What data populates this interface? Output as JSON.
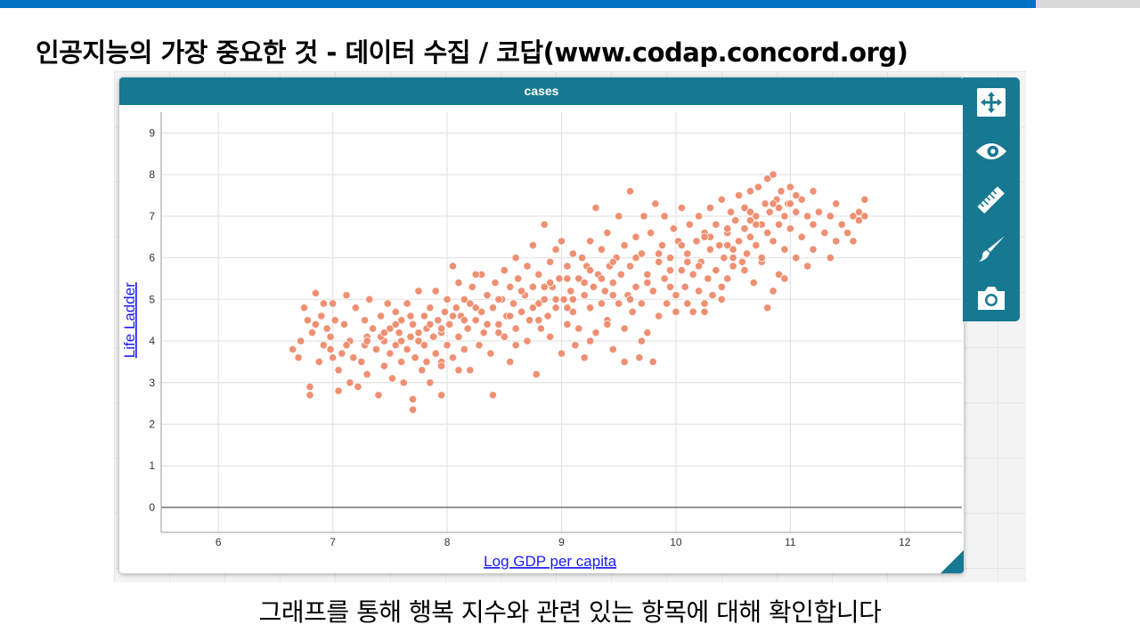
{
  "slide": {
    "title": "인공지능의 가장 중요한 것 - 데이터 수집 / 코답(www.codap.concord.org)",
    "caption": "그래프를 통해 행복 지수와 관련 있는 항목에 대해 확인합니다"
  },
  "graph": {
    "tile_title": "cases",
    "accent": "#177991",
    "point_color": "#ee8a6b"
  },
  "toolbar": {
    "items": [
      {
        "name": "rescale-icon"
      },
      {
        "name": "hide-show-icon"
      },
      {
        "name": "measure-ruler-icon"
      },
      {
        "name": "brush-style-icon"
      },
      {
        "name": "camera-icon"
      }
    ]
  },
  "chart_data": {
    "type": "scatter",
    "title": "",
    "xlabel": "Log GDP per capita",
    "ylabel": "Life Ladder",
    "xlim": [
      5.5,
      12.5
    ],
    "ylim": [
      -0.6,
      9.5
    ],
    "x_ticks": [
      6,
      7,
      8,
      9,
      10,
      11,
      12
    ],
    "y_ticks": [
      0,
      1,
      2,
      3,
      4,
      5,
      6,
      7,
      8,
      9
    ],
    "grid": true,
    "points": [
      [
        6.65,
        3.8
      ],
      [
        6.7,
        3.6
      ],
      [
        6.72,
        4.0
      ],
      [
        6.75,
        4.8
      ],
      [
        6.78,
        4.5
      ],
      [
        6.8,
        2.9
      ],
      [
        6.8,
        2.7
      ],
      [
        6.82,
        4.2
      ],
      [
        6.85,
        5.15
      ],
      [
        6.88,
        3.5
      ],
      [
        6.9,
        4.6
      ],
      [
        6.92,
        3.9
      ],
      [
        6.95,
        4.3
      ],
      [
        6.98,
        4.1
      ],
      [
        7.0,
        3.6
      ],
      [
        7.0,
        4.9
      ],
      [
        7.02,
        4.5
      ],
      [
        7.05,
        3.3
      ],
      [
        7.05,
        2.8
      ],
      [
        7.08,
        3.7
      ],
      [
        7.1,
        4.4
      ],
      [
        7.12,
        5.1
      ],
      [
        7.15,
        4.0
      ],
      [
        7.15,
        3.0
      ],
      [
        7.18,
        3.6
      ],
      [
        7.2,
        4.8
      ],
      [
        7.22,
        2.9
      ],
      [
        7.25,
        3.5
      ],
      [
        7.28,
        4.5
      ],
      [
        7.3,
        4.1
      ],
      [
        7.3,
        3.2
      ],
      [
        7.32,
        5.0
      ],
      [
        7.35,
        4.3
      ],
      [
        7.38,
        3.8
      ],
      [
        7.4,
        2.7
      ],
      [
        7.42,
        4.6
      ],
      [
        7.45,
        3.4
      ],
      [
        7.45,
        4.0
      ],
      [
        7.48,
        4.9
      ],
      [
        7.5,
        3.7
      ],
      [
        7.5,
        4.3
      ],
      [
        7.52,
        3.1
      ],
      [
        7.55,
        4.7
      ],
      [
        7.55,
        3.9
      ],
      [
        7.58,
        4.2
      ],
      [
        7.6,
        3.5
      ],
      [
        7.6,
        4.5
      ],
      [
        7.62,
        3.0
      ],
      [
        7.65,
        4.9
      ],
      [
        7.65,
        3.8
      ],
      [
        7.68,
        4.1
      ],
      [
        7.7,
        2.6
      ],
      [
        7.7,
        2.35
      ],
      [
        7.7,
        4.4
      ],
      [
        7.72,
        3.6
      ],
      [
        7.75,
        5.2
      ],
      [
        7.75,
        4.0
      ],
      [
        7.78,
        3.3
      ],
      [
        7.8,
        4.6
      ],
      [
        7.8,
        3.9
      ],
      [
        7.82,
        4.3
      ],
      [
        7.85,
        3.0
      ],
      [
        7.85,
        4.8
      ],
      [
        7.88,
        4.1
      ],
      [
        7.9,
        3.7
      ],
      [
        7.9,
        5.2
      ],
      [
        7.92,
        4.5
      ],
      [
        7.95,
        3.5
      ],
      [
        7.95,
        4.2
      ],
      [
        7.98,
        4.7
      ],
      [
        7.95,
        2.7
      ],
      [
        8.0,
        3.9
      ],
      [
        8.0,
        5.0
      ],
      [
        8.02,
        4.4
      ],
      [
        8.05,
        5.8
      ],
      [
        8.05,
        3.6
      ],
      [
        8.08,
        4.8
      ],
      [
        8.1,
        4.1
      ],
      [
        8.1,
        5.4
      ],
      [
        8.12,
        4.6
      ],
      [
        8.15,
        3.8
      ],
      [
        8.15,
        5.0
      ],
      [
        8.18,
        4.3
      ],
      [
        8.2,
        3.3
      ],
      [
        8.2,
        4.9
      ],
      [
        8.22,
        5.3
      ],
      [
        8.25,
        4.5
      ],
      [
        8.28,
        3.9
      ],
      [
        8.3,
        4.7
      ],
      [
        8.3,
        5.6
      ],
      [
        8.32,
        4.2
      ],
      [
        8.35,
        5.1
      ],
      [
        8.38,
        3.7
      ],
      [
        8.4,
        4.8
      ],
      [
        8.4,
        2.7
      ],
      [
        8.42,
        5.4
      ],
      [
        8.45,
        4.4
      ],
      [
        8.48,
        5.0
      ],
      [
        8.5,
        4.1
      ],
      [
        8.5,
        5.7
      ],
      [
        8.52,
        4.6
      ],
      [
        8.55,
        5.3
      ],
      [
        8.55,
        3.5
      ],
      [
        8.58,
        4.9
      ],
      [
        8.6,
        4.3
      ],
      [
        8.6,
        6.0
      ],
      [
        8.62,
        5.5
      ],
      [
        8.65,
        4.7
      ],
      [
        8.68,
        5.1
      ],
      [
        8.7,
        4.0
      ],
      [
        8.7,
        5.8
      ],
      [
        8.72,
        4.5
      ],
      [
        8.75,
        6.3
      ],
      [
        8.75,
        5.3
      ],
      [
        8.78,
        3.2
      ],
      [
        8.8,
        4.9
      ],
      [
        8.8,
        5.6
      ],
      [
        8.82,
        4.3
      ],
      [
        8.85,
        6.8
      ],
      [
        8.85,
        5.0
      ],
      [
        8.88,
        4.6
      ],
      [
        8.9,
        5.9
      ],
      [
        8.9,
        4.1
      ],
      [
        8.92,
        5.3
      ],
      [
        8.95,
        6.2
      ],
      [
        8.95,
        4.8
      ],
      [
        8.98,
        5.5
      ],
      [
        9.0,
        3.7
      ],
      [
        9.0,
        6.4
      ],
      [
        9.02,
        5.0
      ],
      [
        9.05,
        4.4
      ],
      [
        9.05,
        5.8
      ],
      [
        9.08,
        5.2
      ],
      [
        9.1,
        4.7
      ],
      [
        9.1,
        6.1
      ],
      [
        9.12,
        3.9
      ],
      [
        9.15,
        5.5
      ],
      [
        9.15,
        4.3
      ],
      [
        9.18,
        6.0
      ],
      [
        9.2,
        5.1
      ],
      [
        9.2,
        3.6
      ],
      [
        9.22,
        5.8
      ],
      [
        9.25,
        4.8
      ],
      [
        9.25,
        6.4
      ],
      [
        9.28,
        5.3
      ],
      [
        9.3,
        4.2
      ],
      [
        9.3,
        7.2
      ],
      [
        9.32,
        5.6
      ],
      [
        9.35,
        4.9
      ],
      [
        9.35,
        6.2
      ],
      [
        9.38,
        5.2
      ],
      [
        9.4,
        4.5
      ],
      [
        9.4,
        6.6
      ],
      [
        9.42,
        5.8
      ],
      [
        9.45,
        3.8
      ],
      [
        9.45,
        5.4
      ],
      [
        9.48,
        6.0
      ],
      [
        9.5,
        4.9
      ],
      [
        9.5,
        7.0
      ],
      [
        9.52,
        5.6
      ],
      [
        9.55,
        4.3
      ],
      [
        9.55,
        6.3
      ],
      [
        9.58,
        5.1
      ],
      [
        9.6,
        7.6
      ],
      [
        9.6,
        5.8
      ],
      [
        9.62,
        4.7
      ],
      [
        9.65,
        6.5
      ],
      [
        9.65,
        5.3
      ],
      [
        9.68,
        3.6
      ],
      [
        9.7,
        6.1
      ],
      [
        9.7,
        4.9
      ],
      [
        9.72,
        7.0
      ],
      [
        9.75,
        5.6
      ],
      [
        9.75,
        4.2
      ],
      [
        9.78,
        6.6
      ],
      [
        9.8,
        5.2
      ],
      [
        9.8,
        3.5
      ],
      [
        9.82,
        7.3
      ],
      [
        9.85,
        5.9
      ],
      [
        9.85,
        4.6
      ],
      [
        9.88,
        6.3
      ],
      [
        9.9,
        5.5
      ],
      [
        9.9,
        7.0
      ],
      [
        9.92,
        4.9
      ],
      [
        9.95,
        6.0
      ],
      [
        9.95,
        5.3
      ],
      [
        9.98,
        6.7
      ],
      [
        10.0,
        5.1
      ],
      [
        10.0,
        4.7
      ],
      [
        10.02,
        6.4
      ],
      [
        10.05,
        5.7
      ],
      [
        10.05,
        7.2
      ],
      [
        10.08,
        5.3
      ],
      [
        10.1,
        6.1
      ],
      [
        10.1,
        4.9
      ],
      [
        10.12,
        6.8
      ],
      [
        10.15,
        5.6
      ],
      [
        10.15,
        4.7
      ],
      [
        10.18,
        6.4
      ],
      [
        10.2,
        5.2
      ],
      [
        10.2,
        7.0
      ],
      [
        10.22,
        5.9
      ],
      [
        10.25,
        4.9
      ],
      [
        10.25,
        6.6
      ],
      [
        10.28,
        5.5
      ],
      [
        10.3,
        6.2
      ],
      [
        10.3,
        7.2
      ],
      [
        10.32,
        5.1
      ],
      [
        10.35,
        6.8
      ],
      [
        10.35,
        5.7
      ],
      [
        10.38,
        6.3
      ],
      [
        10.4,
        5.3
      ],
      [
        10.4,
        7.4
      ],
      [
        10.42,
        6.0
      ],
      [
        10.45,
        6.6
      ],
      [
        10.45,
        5.5
      ],
      [
        10.48,
        7.1
      ],
      [
        10.5,
        6.2
      ],
      [
        10.5,
        5.8
      ],
      [
        10.52,
        6.9
      ],
      [
        10.55,
        6.4
      ],
      [
        10.55,
        7.5
      ],
      [
        10.58,
        5.9
      ],
      [
        10.6,
        6.7
      ],
      [
        10.6,
        7.2
      ],
      [
        10.62,
        6.1
      ],
      [
        10.65,
        7.6
      ],
      [
        10.65,
        6.5
      ],
      [
        10.68,
        5.4
      ],
      [
        10.7,
        7.0
      ],
      [
        10.7,
        6.3
      ],
      [
        10.72,
        7.7
      ],
      [
        10.75,
        6.8
      ],
      [
        10.75,
        5.9
      ],
      [
        10.78,
        7.3
      ],
      [
        10.8,
        6.6
      ],
      [
        10.8,
        7.9
      ],
      [
        10.82,
        7.1
      ],
      [
        10.85,
        6.4
      ],
      [
        10.85,
        8.0
      ],
      [
        10.88,
        7.4
      ],
      [
        10.9,
        6.8
      ],
      [
        10.9,
        5.6
      ],
      [
        10.92,
        7.6
      ],
      [
        10.95,
        7.0
      ],
      [
        10.95,
        6.2
      ],
      [
        10.98,
        7.3
      ],
      [
        11.0,
        6.7
      ],
      [
        11.0,
        7.7
      ],
      [
        11.05,
        7.1
      ],
      [
        11.05,
        6.0
      ],
      [
        11.1,
        7.4
      ],
      [
        11.1,
        6.5
      ],
      [
        11.15,
        7.0
      ],
      [
        11.2,
        6.8
      ],
      [
        11.2,
        6.2
      ],
      [
        11.25,
        7.1
      ],
      [
        11.3,
        6.6
      ],
      [
        11.35,
        7.0
      ],
      [
        11.4,
        6.4
      ],
      [
        11.4,
        7.3
      ],
      [
        11.45,
        6.8
      ],
      [
        11.5,
        6.6
      ],
      [
        11.55,
        7.0
      ],
      [
        11.55,
        6.4
      ],
      [
        11.6,
        7.1
      ],
      [
        11.6,
        6.9
      ],
      [
        11.65,
        7.4
      ],
      [
        11.65,
        7.0
      ],
      [
        11.35,
        6.0
      ],
      [
        10.8,
        4.8
      ],
      [
        10.85,
        5.2
      ],
      [
        10.95,
        5.5
      ],
      [
        11.15,
        5.8
      ],
      [
        10.75,
        6.0
      ],
      [
        10.6,
        5.7
      ],
      [
        10.4,
        5.0
      ],
      [
        10.25,
        4.7
      ],
      [
        9.7,
        4.0
      ],
      [
        9.55,
        3.5
      ],
      [
        9.4,
        4.4
      ],
      [
        9.25,
        4.0
      ],
      [
        9.05,
        4.8
      ],
      [
        8.9,
        5.4
      ],
      [
        8.8,
        4.5
      ],
      [
        8.6,
        3.9
      ],
      [
        8.45,
        4.2
      ],
      [
        8.25,
        5.6
      ],
      [
        8.1,
        3.3
      ],
      [
        7.95,
        3.4
      ],
      [
        7.82,
        3.5
      ],
      [
        7.68,
        4.6
      ],
      [
        7.55,
        4.4
      ],
      [
        7.42,
        4.1
      ],
      [
        7.28,
        3.9
      ],
      [
        7.12,
        3.9
      ],
      [
        6.98,
        3.8
      ],
      [
        6.92,
        4.9
      ],
      [
        6.85,
        4.4
      ],
      [
        10.1,
        5.9
      ],
      [
        10.3,
        6.5
      ],
      [
        10.5,
        6.0
      ],
      [
        10.7,
        6.8
      ],
      [
        10.9,
        7.2
      ],
      [
        11.0,
        7.3
      ],
      [
        10.65,
        6.9
      ],
      [
        10.45,
        6.3
      ],
      [
        10.2,
        5.8
      ],
      [
        9.95,
        5.7
      ],
      [
        9.75,
        5.4
      ],
      [
        9.6,
        5.0
      ],
      [
        9.45,
        5.1
      ],
      [
        9.35,
        5.5
      ],
      [
        9.2,
        5.4
      ],
      [
        9.1,
        5.0
      ],
      [
        8.95,
        5.0
      ],
      [
        8.75,
        4.8
      ],
      [
        8.55,
        4.6
      ],
      [
        8.35,
        4.4
      ],
      [
        8.15,
        4.5
      ],
      [
        7.95,
        4.3
      ],
      [
        7.75,
        4.2
      ],
      [
        7.6,
        4.0
      ],
      [
        7.45,
        4.2
      ],
      [
        7.3,
        4.0
      ],
      [
        7.85,
        4.4
      ],
      [
        8.05,
        4.6
      ],
      [
        8.25,
        4.8
      ],
      [
        8.45,
        5.0
      ],
      [
        8.65,
        5.2
      ],
      [
        8.85,
        5.3
      ],
      [
        9.05,
        5.5
      ],
      [
        9.25,
        5.7
      ],
      [
        9.45,
        5.9
      ],
      [
        9.65,
        6.0
      ],
      [
        9.85,
        6.1
      ],
      [
        10.05,
        6.3
      ],
      [
        10.25,
        6.5
      ],
      [
        10.45,
        6.7
      ],
      [
        10.65,
        7.1
      ],
      [
        10.85,
        7.3
      ],
      [
        11.05,
        7.5
      ],
      [
        11.2,
        7.6
      ]
    ]
  }
}
